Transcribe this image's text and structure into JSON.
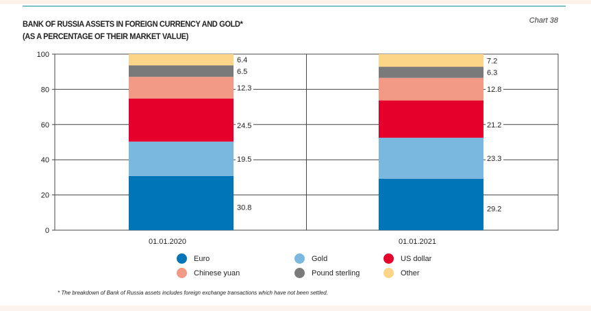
{
  "header": {
    "title_line1": "BANK OF RUSSIA ASSETS IN FOREIGN CURRENCY AND GOLD*",
    "title_line2": "(AS A PERCENTAGE OF THEIR MARKET VALUE)",
    "chart_number": "Chart 38"
  },
  "footnote": "* The breakdown of Bank of Russia assets includes foreign exchange transactions which have not been settled.",
  "chart_data": {
    "type": "bar",
    "stacked": true,
    "title": "BANK OF RUSSIA ASSETS IN FOREIGN CURRENCY AND GOLD* (AS A PERCENTAGE OF THEIR MARKET VALUE)",
    "categories": [
      "01.01.2020",
      "01.01.2021"
    ],
    "ylim": [
      0,
      100
    ],
    "yticks": [
      "0",
      "20",
      "40",
      "60",
      "80",
      "100"
    ],
    "grid": true,
    "legend_position": "bottom",
    "series": [
      {
        "name": "Euro",
        "color": "#0075b7",
        "values": [
          30.8,
          29.2
        ],
        "labels": [
          "30.8",
          "29.2"
        ]
      },
      {
        "name": "Gold",
        "color": "#7ab8e0",
        "values": [
          19.5,
          23.3
        ],
        "labels": [
          "19.5",
          "23.3"
        ]
      },
      {
        "name": "US dollar",
        "color": "#e4002b",
        "values": [
          24.5,
          21.2
        ],
        "labels": [
          "24.5",
          "21.2"
        ]
      },
      {
        "name": "Chinese yuan",
        "color": "#f29a85",
        "values": [
          12.3,
          12.8
        ],
        "labels": [
          "12.3",
          "12.8"
        ]
      },
      {
        "name": "Pound sterling",
        "color": "#7a7a7a",
        "values": [
          6.5,
          6.3
        ],
        "labels": [
          "6.5",
          "6.3"
        ]
      },
      {
        "name": "Other",
        "color": "#fcd589",
        "values": [
          6.4,
          7.2
        ],
        "labels": [
          "6.4",
          "7.2"
        ]
      }
    ],
    "legend_order": [
      0,
      1,
      2,
      3,
      4,
      5
    ]
  }
}
